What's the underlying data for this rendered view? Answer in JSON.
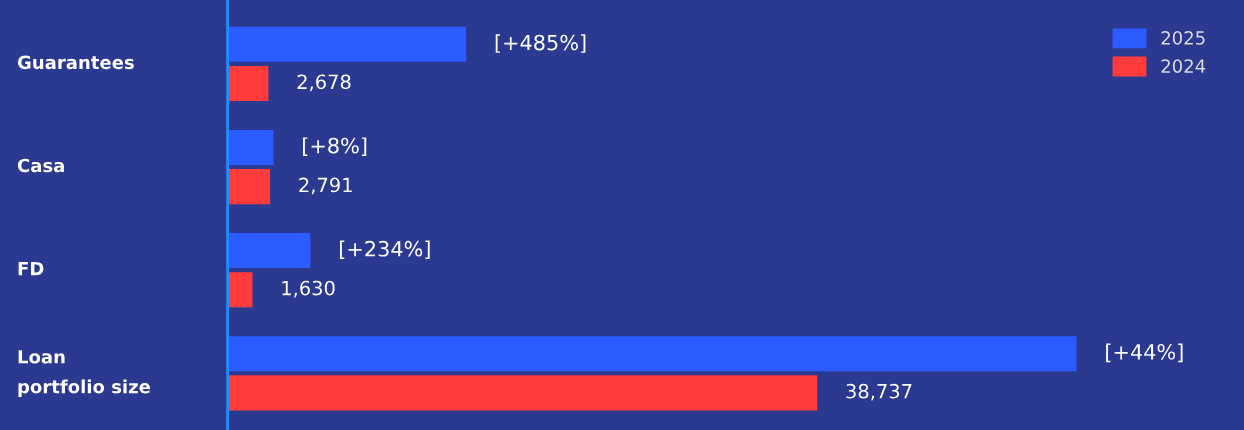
{
  "chart_data": {
    "type": "bar",
    "orientation": "horizontal",
    "categories": [
      "Guarantees",
      "Casa",
      "FD",
      "Loan\nportfolio size"
    ],
    "series": [
      {
        "name": "2025",
        "color": "#2a5cff",
        "values": [
          15670,
          3010,
          5440,
          55780
        ]
      },
      {
        "name": "2024",
        "color": "#ff3b3b",
        "values": [
          2678,
          2791,
          1630,
          38737
        ],
        "value_labels": [
          "2,678",
          "2,791",
          "1,630",
          "38,737"
        ]
      }
    ],
    "annotations": [
      {
        "text": "[+485%]",
        "x": 15670,
        "y": "Guarantees"
      },
      {
        "text": "[+8%]",
        "x": 3010,
        "y": "Casa"
      },
      {
        "text": "[+234%]",
        "x": 5440,
        "y": "FD"
      },
      {
        "text": "[+44%]",
        "x": 55780,
        "y": "Loan\nportfolio size"
      }
    ],
    "legend": "top right"
  }
}
